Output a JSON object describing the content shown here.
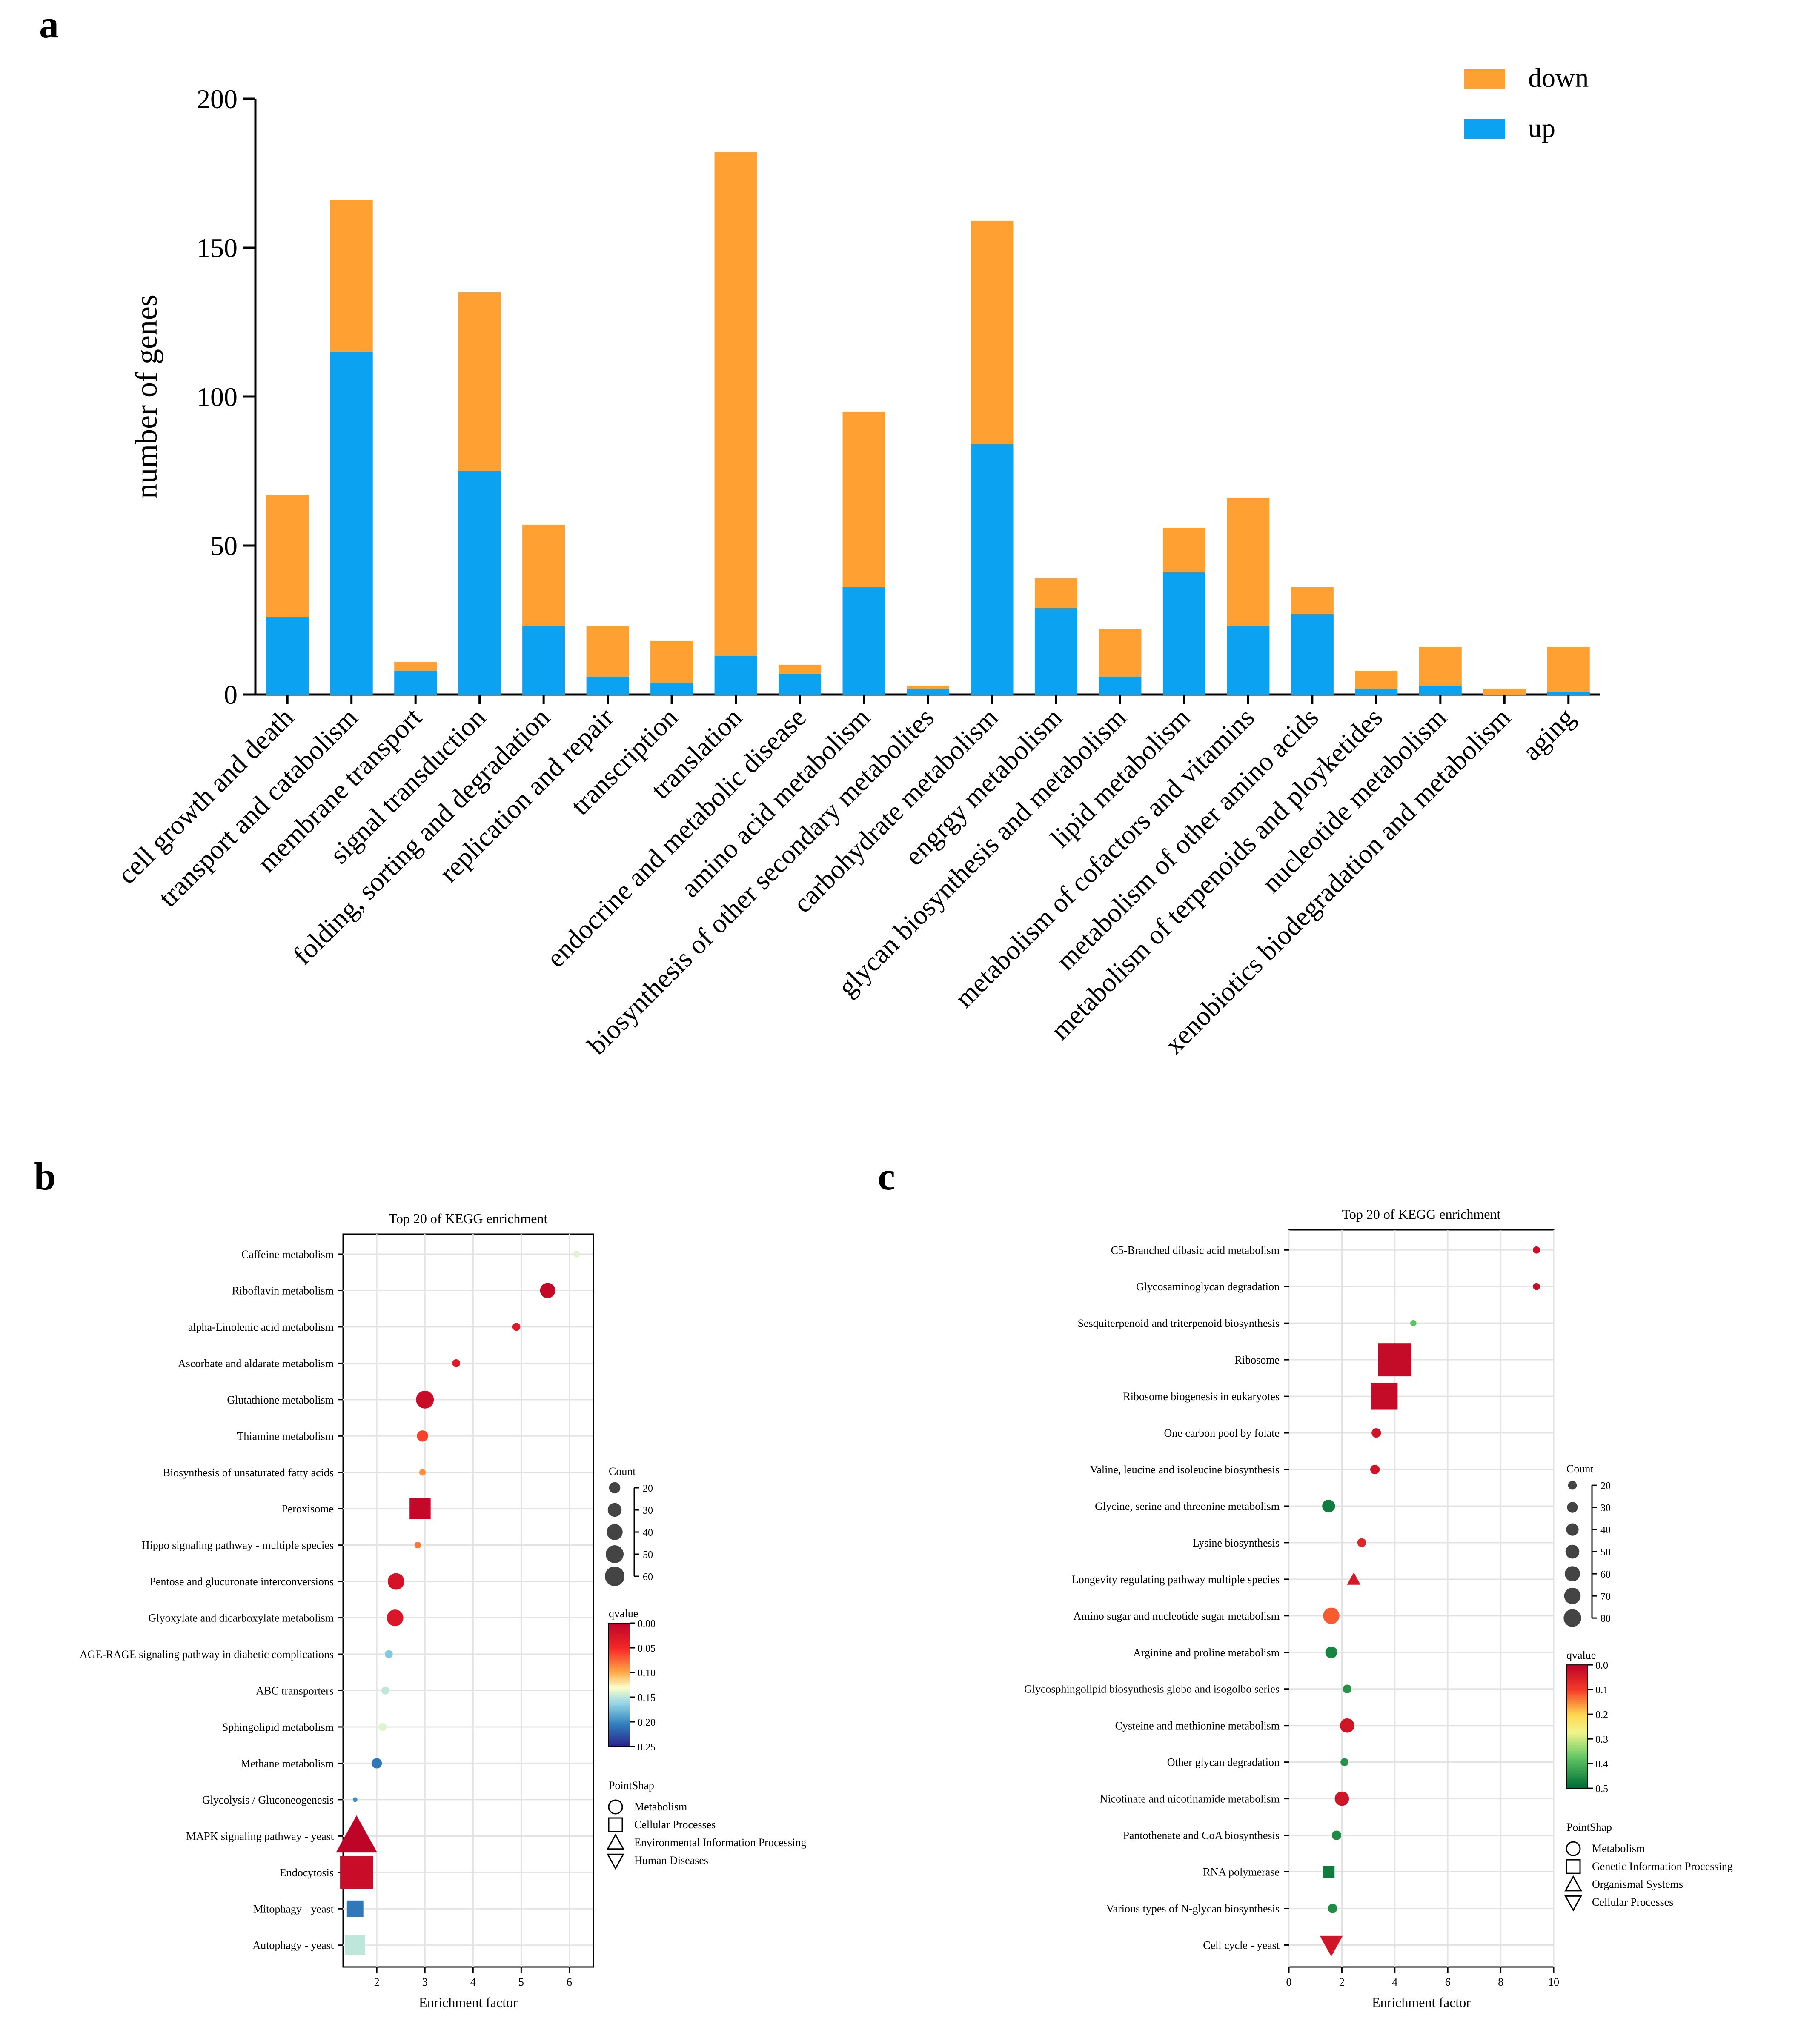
{
  "chart_data": [
    {
      "panel": "a",
      "type": "bar",
      "stacked": true,
      "ylabel": "number of genes",
      "ylim": [
        0,
        200
      ],
      "yticks": [
        0,
        50,
        100,
        150,
        200
      ],
      "legend_position": "top-right",
      "categories": [
        "cell growth and death",
        "transport and catabolism",
        "membrane transport",
        "signal transduction",
        "folding, sorting and degradation",
        "replication and repair",
        "transcription",
        "translation",
        "endocrine and metabolic disease",
        "amino acid metabolism",
        "biosynthesis of other secondary metabolites",
        "carbohydrate metabolism",
        "engrgy metabolism",
        "glycan biosynthesis and metabolism",
        "lipid metabolism",
        "metabolism of cofactors and vitamins",
        "metabolism of other amino acids",
        "metabolism of terpenoids and ployketides",
        "nucleotide metabolism",
        "xenobiotics biodegradation and metabolism",
        "aging"
      ],
      "series": [
        {
          "name": "up",
          "color": "#0BA2F2",
          "values": [
            26,
            115,
            8,
            75,
            23,
            6,
            4,
            13,
            7,
            36,
            2,
            84,
            29,
            6,
            41,
            23,
            27,
            2,
            3,
            0,
            1
          ]
        },
        {
          "name": "down",
          "color": "#FFA033",
          "values": [
            41,
            51,
            3,
            60,
            34,
            17,
            14,
            169,
            3,
            59,
            1,
            75,
            10,
            16,
            15,
            43,
            9,
            6,
            13,
            2,
            15
          ]
        }
      ],
      "legend_order": [
        "down",
        "up"
      ]
    },
    {
      "panel": "b",
      "type": "scatter",
      "title": "Top 20 of KEGG enrichment",
      "xlabel": "Enrichment factor",
      "xlim": [
        1.3,
        6.5
      ],
      "xticks": [
        2,
        3,
        4,
        5,
        6
      ],
      "count_legend": {
        "title": "Count",
        "values": [
          20,
          30,
          40,
          50,
          60
        ]
      },
      "qvalue_legend": {
        "title": "qvalue",
        "ticks": [
          "0.00",
          "0.05",
          "0.10",
          "0.15",
          "0.20",
          "0.25"
        ],
        "range": [
          0,
          0.25
        ]
      },
      "shape_legend": {
        "title": "PointShap",
        "entries": [
          {
            "shape": "circle",
            "label": "Metabolism"
          },
          {
            "shape": "square",
            "label": "Cellular Processes"
          },
          {
            "shape": "triangle-up",
            "label": "Environmental Information Processing"
          },
          {
            "shape": "triangle-down",
            "label": "Human Diseases"
          }
        ]
      },
      "points": [
        {
          "term": "Caffeine metabolism",
          "x": 6.15,
          "count": 1,
          "qvalue": 0.14,
          "shape": "circle"
        },
        {
          "term": "Riboflavin metabolism",
          "x": 5.55,
          "count": 10,
          "qvalue": 0.005,
          "shape": "circle"
        },
        {
          "term": "alpha-Linolenic acid metabolism",
          "x": 4.9,
          "count": 2,
          "qvalue": 0.03,
          "shape": "circle"
        },
        {
          "term": "Ascorbate and aldarate metabolism",
          "x": 3.65,
          "count": 2,
          "qvalue": 0.03,
          "shape": "circle"
        },
        {
          "term": "Glutathione metabolism",
          "x": 3.0,
          "count": 14,
          "qvalue": 0.01,
          "shape": "circle"
        },
        {
          "term": "Thiamine metabolism",
          "x": 2.95,
          "count": 5,
          "qvalue": 0.06,
          "shape": "circle"
        },
        {
          "term": "Biosynthesis of unsaturated fatty acids",
          "x": 2.95,
          "count": 1,
          "qvalue": 0.09,
          "shape": "circle"
        },
        {
          "term": "Peroxisome",
          "x": 2.9,
          "count": 20,
          "qvalue": 0.005,
          "shape": "square"
        },
        {
          "term": "Hippo signaling pathway - multiple species",
          "x": 2.85,
          "count": 1,
          "qvalue": 0.08,
          "shape": "circle"
        },
        {
          "term": "Pentose and glucuronate interconversions",
          "x": 2.4,
          "count": 12,
          "qvalue": 0.02,
          "shape": "circle"
        },
        {
          "term": "Glyoxylate and dicarboxylate metabolism",
          "x": 2.38,
          "count": 12,
          "qvalue": 0.025,
          "shape": "circle"
        },
        {
          "term": "AGE-RAGE signaling pathway in diabetic complications",
          "x": 2.25,
          "count": 2,
          "qvalue": 0.17,
          "shape": "circle"
        },
        {
          "term": "ABC transporters",
          "x": 2.18,
          "count": 2,
          "qvalue": 0.15,
          "shape": "circle"
        },
        {
          "term": "Sphingolipid metabolism",
          "x": 2.12,
          "count": 2,
          "qvalue": 0.14,
          "shape": "circle"
        },
        {
          "term": "Methane metabolism",
          "x": 2.0,
          "count": 4,
          "qvalue": 0.21,
          "shape": "circle"
        },
        {
          "term": "Glycolysis / Gluconeogenesis",
          "x": 1.55,
          "count": 0,
          "qvalue": 0.2,
          "shape": "circle"
        },
        {
          "term": "MAPK signaling pathway - yeast",
          "x": 1.58,
          "count": 60,
          "qvalue": 0.0,
          "shape": "triangle-up"
        },
        {
          "term": "Endocytosis",
          "x": 1.58,
          "count": 50,
          "qvalue": 0.01,
          "shape": "square"
        },
        {
          "term": "Mitophagy - yeast",
          "x": 1.55,
          "count": 12,
          "qvalue": 0.21,
          "shape": "square"
        },
        {
          "term": "Autophagy - yeast",
          "x": 1.55,
          "count": 18,
          "qvalue": 0.15,
          "shape": "square"
        }
      ]
    },
    {
      "panel": "c",
      "type": "scatter",
      "title": "Top 20 of KEGG enrichment",
      "xlabel": "Enrichment factor",
      "xlim": [
        0,
        10
      ],
      "xticks": [
        0,
        2,
        4,
        6,
        8,
        10
      ],
      "count_legend": {
        "title": "Count",
        "values": [
          20,
          30,
          40,
          50,
          60,
          70,
          80
        ]
      },
      "qvalue_legend": {
        "title": "qvalue",
        "ticks": [
          "0.0",
          "0.1",
          "0.2",
          "0.3",
          "0.4",
          "0.5"
        ],
        "range": [
          0,
          0.5
        ]
      },
      "shape_legend": {
        "title": "PointShap",
        "entries": [
          {
            "shape": "circle",
            "label": "Metabolism"
          },
          {
            "shape": "square",
            "label": "Genetic Information Processing"
          },
          {
            "shape": "triangle-up",
            "label": "Organismal Systems"
          },
          {
            "shape": "triangle-down",
            "label": "Cellular Processes"
          }
        ]
      },
      "points": [
        {
          "term": "C5-Branched dibasic acid metabolism",
          "x": 9.35,
          "count": 3,
          "qvalue": 0.02,
          "shape": "circle"
        },
        {
          "term": "Glycosaminoglycan degradation",
          "x": 9.35,
          "count": 3,
          "qvalue": 0.02,
          "shape": "circle"
        },
        {
          "term": "Sesquiterpenoid and triterpenoid biosynthesis",
          "x": 4.7,
          "count": 2,
          "qvalue": 0.38,
          "shape": "circle"
        },
        {
          "term": "Ribosome",
          "x": 4.0,
          "count": 85,
          "qvalue": 0.01,
          "shape": "square"
        },
        {
          "term": "Ribosome biogenesis in eukaryotes",
          "x": 3.6,
          "count": 55,
          "qvalue": 0.01,
          "shape": "square"
        },
        {
          "term": "One carbon pool by folate",
          "x": 3.3,
          "count": 6,
          "qvalue": 0.03,
          "shape": "circle"
        },
        {
          "term": "Valine, leucine and isoleucine biosynthesis",
          "x": 3.25,
          "count": 6,
          "qvalue": 0.03,
          "shape": "circle"
        },
        {
          "term": "Glycine, serine and threonine metabolism",
          "x": 1.5,
          "count": 12,
          "qvalue": 0.48,
          "shape": "circle"
        },
        {
          "term": "Lysine biosynthesis",
          "x": 2.75,
          "count": 5,
          "qvalue": 0.06,
          "shape": "circle"
        },
        {
          "term": "Longevity regulating pathway multiple species",
          "x": 2.45,
          "count": 10,
          "qvalue": 0.04,
          "shape": "triangle-up"
        },
        {
          "term": "Amino sugar and nucleotide sugar metabolism",
          "x": 1.6,
          "count": 20,
          "qvalue": 0.12,
          "shape": "circle"
        },
        {
          "term": "Arginine and proline metabolism",
          "x": 1.6,
          "count": 10,
          "qvalue": 0.47,
          "shape": "circle"
        },
        {
          "term": "Glycosphingolipid biosynthesis globo and isogolbo series",
          "x": 2.2,
          "count": 5,
          "qvalue": 0.45,
          "shape": "circle"
        },
        {
          "term": "Cysteine and methionine metabolism",
          "x": 2.2,
          "count": 15,
          "qvalue": 0.03,
          "shape": "circle"
        },
        {
          "term": "Other glycan degradation",
          "x": 2.1,
          "count": 4,
          "qvalue": 0.45,
          "shape": "circle"
        },
        {
          "term": "Nicotinate and nicotinamide metabolism",
          "x": 2.0,
          "count": 15,
          "qvalue": 0.03,
          "shape": "circle"
        },
        {
          "term": "Pantothenate and CoA biosynthesis",
          "x": 1.8,
          "count": 6,
          "qvalue": 0.46,
          "shape": "circle"
        },
        {
          "term": "RNA polymerase",
          "x": 1.5,
          "count": 10,
          "qvalue": 0.48,
          "shape": "square"
        },
        {
          "term": "Various types of N-glycan biosynthesis",
          "x": 1.65,
          "count": 6,
          "qvalue": 0.46,
          "shape": "circle"
        },
        {
          "term": "Cell cycle - yeast",
          "x": 1.6,
          "count": 30,
          "qvalue": 0.03,
          "shape": "triangle-down"
        }
      ]
    }
  ],
  "labels": {
    "panel_a": "a",
    "panel_b": "b",
    "panel_c": "c"
  }
}
